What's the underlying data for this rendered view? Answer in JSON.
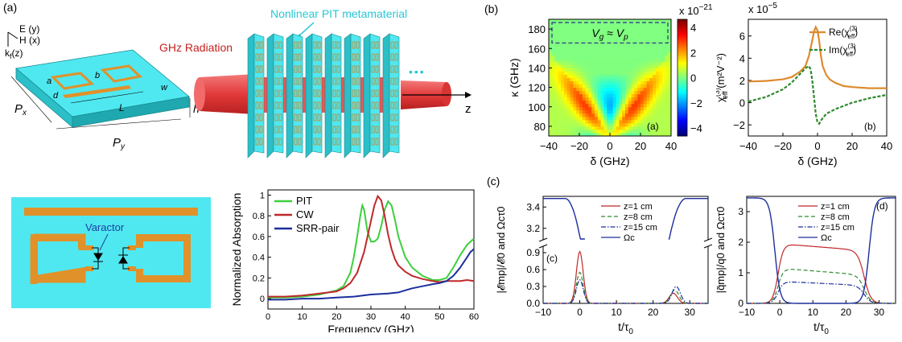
{
  "panel_labels": {
    "a": "(a)",
    "b": "(b)",
    "c": "(c)"
  },
  "schematic": {
    "e_label": "E (y)",
    "h_label": "H (x)",
    "k_label": "k",
    "k_sub": "f",
    "k_suffix": "(z)",
    "radiation_label": "GHz Radiation",
    "metamaterial_label": "Nonlinear PIT metamaterial",
    "z_label": "z",
    "ellipsis": "•••",
    "dims": {
      "a": "a",
      "b": "b",
      "d": "d",
      "w": "w",
      "L": "L",
      "h": "h",
      "Px": "P",
      "Px_sub": "x",
      "Py": "P",
      "Py_sub": "y"
    },
    "varactor_label": "Varactor"
  },
  "colors": {
    "cyan": "#4fe8f0",
    "cyan_side": "#2cc3cc",
    "copper": "#e0912a",
    "red": "#d83a3a",
    "pit_green": "#3ccf3c",
    "cw_red": "#c0282a",
    "srr_blue": "#1d2f9c",
    "orange": "#dd8a2e",
    "dash_green": "#2d8a2d"
  },
  "chart_data": [
    {
      "id": "absorption",
      "type": "line",
      "xlabel": "Frequency (GHz)",
      "ylabel": "Normalized Absorption",
      "xlim": [
        0,
        60
      ],
      "ylim": [
        -0.1,
        1.05
      ],
      "xticks": [
        "0",
        "10",
        "20",
        "30",
        "40",
        "50",
        "60"
      ],
      "yticks": [
        "0",
        "0.2",
        "0.4",
        "0.6",
        "0.8",
        "1"
      ],
      "legend_position": "top-left",
      "series": [
        {
          "name": "PIT",
          "color": "#3ccf3c",
          "x": [
            0,
            5,
            10,
            15,
            20,
            22,
            24,
            25,
            26,
            27,
            27.5,
            28,
            29,
            30,
            31,
            32,
            33,
            34,
            35,
            36,
            37,
            38,
            40,
            42,
            45,
            48,
            50,
            52,
            54,
            56,
            58,
            60
          ],
          "y": [
            0.01,
            0.01,
            0.02,
            0.04,
            0.08,
            0.12,
            0.25,
            0.4,
            0.6,
            0.82,
            0.9,
            0.86,
            0.65,
            0.55,
            0.55,
            0.58,
            0.7,
            0.86,
            0.94,
            0.9,
            0.76,
            0.6,
            0.4,
            0.3,
            0.22,
            0.18,
            0.18,
            0.2,
            0.3,
            0.42,
            0.52,
            0.58
          ]
        },
        {
          "name": "CW",
          "color": "#c0282a",
          "x": [
            0,
            5,
            10,
            15,
            20,
            22,
            24,
            26,
            28,
            30,
            31,
            32,
            33,
            34,
            35,
            36,
            37,
            38,
            40,
            42,
            45,
            48,
            50,
            52,
            54,
            56,
            58,
            60
          ],
          "y": [
            0.02,
            0.02,
            0.03,
            0.05,
            0.07,
            0.1,
            0.15,
            0.25,
            0.45,
            0.75,
            0.9,
            0.99,
            0.95,
            0.8,
            0.62,
            0.48,
            0.38,
            0.32,
            0.26,
            0.22,
            0.19,
            0.17,
            0.16,
            0.17,
            0.17,
            0.17,
            0.18,
            0.17
          ]
        },
        {
          "name": "SRR-pair",
          "color": "#1d2f9c",
          "x": [
            0,
            5,
            10,
            15,
            20,
            25,
            30,
            35,
            38,
            40,
            42,
            45,
            48,
            50,
            52,
            54,
            55,
            56,
            57,
            58,
            59,
            60
          ],
          "y": [
            -0.01,
            -0.01,
            0.0,
            0.0,
            0.01,
            0.02,
            0.04,
            0.05,
            0.06,
            0.08,
            0.1,
            0.12,
            0.14,
            0.15,
            0.17,
            0.22,
            0.26,
            0.3,
            0.35,
            0.4,
            0.45,
            0.48
          ]
        }
      ]
    },
    {
      "id": "heatmap",
      "type": "heatmap",
      "xlabel": "δ (GHz)",
      "ylabel": "κ (GHz)",
      "xlim": [
        -40,
        40
      ],
      "ylim": [
        70,
        190
      ],
      "xticks": [
        "-40",
        "-20",
        "0",
        "20",
        "40"
      ],
      "yticks": [
        "80",
        "100",
        "120",
        "140",
        "160",
        "180"
      ],
      "colorbar_ticks": [
        "4",
        "2",
        "0",
        "-2",
        "-4"
      ],
      "colorbar_scale": "x 10",
      "colorbar_exp": "-21",
      "annotation": "V",
      "annotation_sub_g": "g",
      "annotation_mid": " ≈ V",
      "annotation_sub_p": "p",
      "panel_tag": "(a)"
    },
    {
      "id": "chi3",
      "type": "line",
      "xlabel": "δ (GHz)",
      "ylabel": "χ",
      "ylabel_sup": "(3)",
      "ylabel_sub": "eff",
      "ylabel_units": " (m²V⁻²)",
      "scale": "x 10",
      "scale_exp": "-5",
      "xlim": [
        -40,
        40
      ],
      "ylim": [
        -3,
        7.5
      ],
      "xticks": [
        "-40",
        "-20",
        "0",
        "20",
        "40"
      ],
      "yticks": [
        "-2",
        "0",
        "2",
        "4",
        "6"
      ],
      "panel_tag": "(b)",
      "legend_position": "top-right",
      "series": [
        {
          "name": "Re(χ(3)eff)",
          "legend": "Re(χ",
          "color": "#dd8a2e",
          "x": [
            -40,
            -30,
            -20,
            -15,
            -10,
            -7,
            -5,
            -3,
            -2,
            -1,
            0,
            1,
            2,
            3,
            5,
            7,
            10,
            15,
            20,
            30,
            40
          ],
          "y": [
            1.9,
            1.95,
            2.1,
            2.3,
            2.8,
            3.3,
            4.2,
            5.6,
            6.4,
            6.8,
            6.5,
            5.5,
            4.2,
            3.3,
            2.5,
            2.1,
            1.8,
            1.5,
            1.4,
            1.3,
            1.3
          ]
        },
        {
          "name": "Im(χ(3)eff)",
          "legend": "Im(χ",
          "color": "#2d8a2d",
          "x": [
            -40,
            -30,
            -20,
            -15,
            -10,
            -7,
            -5,
            -4,
            -3,
            -2,
            -1,
            0,
            1,
            2,
            5,
            10,
            15,
            20,
            30,
            40
          ],
          "y": [
            0.1,
            0.5,
            1.2,
            1.8,
            2.6,
            3.1,
            3.3,
            3.0,
            2.0,
            0.5,
            -1.0,
            -1.8,
            -1.9,
            -1.6,
            -1.0,
            -0.6,
            -0.3,
            0.0,
            0.4,
            0.7
          ]
        }
      ]
    },
    {
      "id": "pulse_c",
      "type": "line",
      "xlabel": "t/τ",
      "xlabel_sub": "0",
      "ylabel": "|𝓔mp|/𝓔0 and Ωcτ0",
      "xlim": [
        -10,
        35
      ],
      "xticks": [
        "-10",
        "0",
        "10",
        "20",
        "30"
      ],
      "yticks_lower": [
        "0.0",
        "0.3",
        "0.6",
        "0.9"
      ],
      "yticks_upper": [
        "3.2",
        "3.4"
      ],
      "panel_tag": "(c)",
      "legend_position": "top-center",
      "series": [
        {
          "name": "z=1 cm",
          "color": "#c0282a",
          "dash": ""
        },
        {
          "name": "z=8 cm",
          "color": "#2d8a2d",
          "dash": "5,3"
        },
        {
          "name": "z=15 cm",
          "color": "#1d2f9c",
          "dash": "6,2,1.5,2"
        },
        {
          "name": "Ωc",
          "color": "#1d2f9c",
          "dash": ""
        }
      ]
    },
    {
      "id": "pulse_d",
      "type": "line",
      "xlabel": "t/τ",
      "xlabel_sub": "0",
      "ylabel": "|q̃mp|/q0 and Ωcτ0",
      "xlim": [
        -10,
        35
      ],
      "ylim": [
        0,
        3.5
      ],
      "xticks": [
        "-10",
        "0",
        "10",
        "20",
        "30"
      ],
      "yticks": [
        "0",
        "1",
        "2",
        "3"
      ],
      "panel_tag": "(d)",
      "legend_position": "top-center",
      "series": [
        {
          "name": "z=1 cm",
          "color": "#c0282a",
          "dash": ""
        },
        {
          "name": "z=8 cm",
          "color": "#2d8a2d",
          "dash": "5,3"
        },
        {
          "name": "z=15 cm",
          "color": "#1d2f9c",
          "dash": "6,2,1.5,2"
        },
        {
          "name": "Ωc",
          "color": "#1d2f9c",
          "dash": ""
        }
      ]
    }
  ]
}
